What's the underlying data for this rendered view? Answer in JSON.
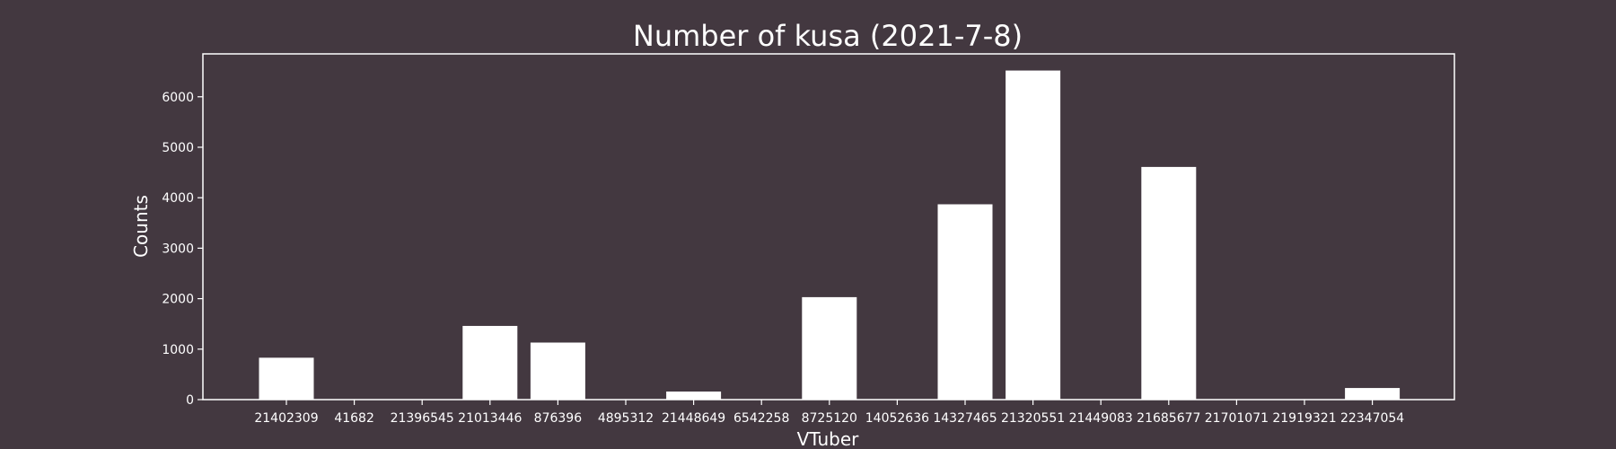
{
  "chart_data": {
    "type": "bar",
    "title": "Number of kusa (2021-7-8)",
    "xlabel": "VTuber",
    "ylabel": "Counts",
    "categories": [
      "21402309",
      "41682",
      "21396545",
      "21013446",
      "876396",
      "4895312",
      "21448649",
      "6542258",
      "8725120",
      "14052636",
      "14327465",
      "21320551",
      "21449083",
      "21685677",
      "21701071",
      "21919321",
      "22347054"
    ],
    "values": [
      830,
      0,
      0,
      1460,
      1130,
      0,
      160,
      0,
      2030,
      0,
      3870,
      6520,
      0,
      4610,
      0,
      0,
      230
    ],
    "ylim": [
      0,
      6850
    ],
    "yticks": [
      0,
      1000,
      2000,
      3000,
      4000,
      5000,
      6000
    ],
    "grid": false,
    "colors": {
      "background": "#433840",
      "bar": "#ffffff",
      "axis": "#ffffff",
      "text": "#ffffff"
    }
  }
}
